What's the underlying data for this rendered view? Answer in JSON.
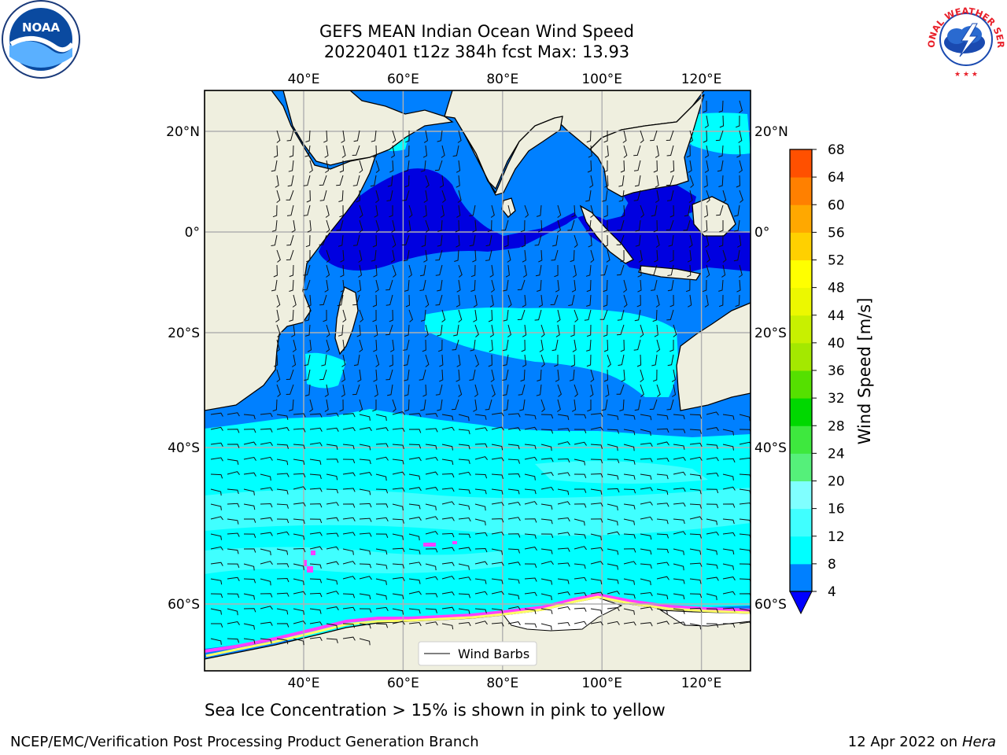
{
  "title": {
    "line1": "GEFS MEAN Indian Ocean Wind Speed",
    "line2": "20220401 t12z 384h fcst   Max: 13.93"
  },
  "subtitle": "Sea Ice Concentration > 15% is shown in pink to yellow",
  "footer": {
    "left": "NCEP/EMC/Verification Post Processing Product Generation Branch",
    "date": "12 Apr 2022 on",
    "host": "Hera"
  },
  "logos": {
    "left": "noaa-logo",
    "left_text": "NOAA",
    "right": "nws-logo",
    "right_text": "NATIONAL WEATHER SERVICE"
  },
  "map": {
    "lon_range": [
      20,
      130
    ],
    "lat_range": [
      -74,
      28
    ],
    "lon_ticks": [
      "40°E",
      "60°E",
      "80°E",
      "100°E",
      "120°E"
    ],
    "lat_ticks_left": [
      "20°N",
      "0°",
      "20°S",
      "40°S",
      "60°S"
    ],
    "lat_ticks_right": [
      "20°N",
      "0°",
      "20°S",
      "40°S",
      "60°S"
    ],
    "legend_label": "Wind Barbs",
    "colors": {
      "land": "#efefdf",
      "band_4_8": "#0080ff",
      "band_below_4": "#0000e0",
      "band_8_12": "#00ffff",
      "band_12_16": "#40ffff",
      "ice_pink": "#ff40ff",
      "ice_yellow": "#ffff66"
    }
  },
  "colorbar": {
    "label": "Wind Speed [m/s]",
    "ticks": [
      "4",
      "8",
      "12",
      "16",
      "20",
      "24",
      "28",
      "32",
      "36",
      "40",
      "44",
      "48",
      "52",
      "56",
      "60",
      "64",
      "68"
    ],
    "colors": [
      "#0080ff",
      "#00ffff",
      "#40ffff",
      "#80ffff",
      "#55f07a",
      "#3ee83e",
      "#00d800",
      "#55e000",
      "#a4e800",
      "#c8f000",
      "#ecf800",
      "#ffff00",
      "#ffd000",
      "#ffa800",
      "#ff8000",
      "#ff5000",
      "#ff2800",
      "#ff0000"
    ],
    "extend_color": "#0000ff"
  }
}
